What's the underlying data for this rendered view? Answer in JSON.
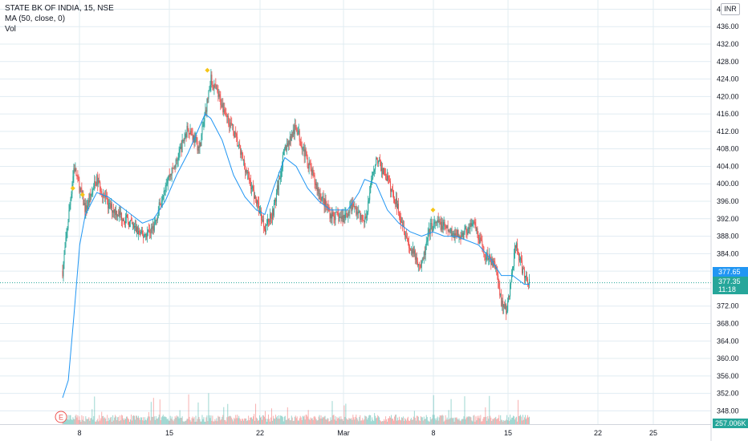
{
  "legend": {
    "symbol": "STATE BK OF INDIA, 15, NSE",
    "ma": "MA (50, close, 0)",
    "vol": "Vol"
  },
  "currency_badge": "INR",
  "price_labels": {
    "bid": "377.65",
    "last": "377.35",
    "countdown": "11:18",
    "volume": "257.006K"
  },
  "earnings_marker": "E",
  "colors": {
    "up": "#26a69a",
    "down": "#ef5350",
    "ma_line": "#2196f3",
    "grid": "#e1ecf2",
    "signal_marker": "#f5c518",
    "tag_blue": "#2196f3",
    "tag_green": "#26a69a"
  },
  "chart_data": {
    "type": "candlestick",
    "title": "STATE BK OF INDIA, 15, NSE",
    "x_tick_labels": [
      "8",
      "15",
      "22",
      "Mar",
      "8",
      "15",
      "22",
      "25"
    ],
    "y_tick_labels": [
      "348.00",
      "352.00",
      "356.00",
      "360.00",
      "364.00",
      "368.00",
      "372.00",
      "376.00",
      "380.00",
      "384.00",
      "388.00",
      "392.00",
      "396.00",
      "400.00",
      "404.00",
      "408.00",
      "412.00",
      "416.00",
      "420.00",
      "424.00",
      "428.00",
      "432.00",
      "436.00",
      "440.00"
    ],
    "ylim": [
      345.5,
      441
    ],
    "grid": true,
    "last_price": 377.35,
    "price_path": [
      [
        0,
        380
      ],
      [
        2,
        404
      ],
      [
        4,
        394
      ],
      [
        6,
        401
      ],
      [
        8,
        395
      ],
      [
        11,
        392
      ],
      [
        14,
        388
      ],
      [
        16,
        390
      ],
      [
        18,
        400
      ],
      [
        20,
        405
      ],
      [
        22,
        413
      ],
      [
        24,
        408
      ],
      [
        26,
        424
      ],
      [
        28,
        418
      ],
      [
        30,
        412
      ],
      [
        32,
        404
      ],
      [
        34,
        396
      ],
      [
        35.5,
        390
      ],
      [
        37,
        394
      ],
      [
        39,
        408
      ],
      [
        41,
        413
      ],
      [
        43,
        405
      ],
      [
        45,
        398
      ],
      [
        47,
        393
      ],
      [
        49,
        392
      ],
      [
        51,
        395
      ],
      [
        53,
        391
      ],
      [
        55,
        406
      ],
      [
        57,
        401
      ],
      [
        59,
        394
      ],
      [
        61,
        385
      ],
      [
        63,
        381
      ],
      [
        64.5,
        390
      ],
      [
        66,
        391
      ],
      [
        68,
        389
      ],
      [
        70,
        388
      ],
      [
        72,
        391
      ],
      [
        74,
        384
      ],
      [
        76,
        381
      ],
      [
        77,
        373
      ],
      [
        78,
        371
      ],
      [
        79.5,
        386
      ],
      [
        81,
        379
      ],
      [
        82,
        377.35
      ]
    ],
    "ma50_path": [
      [
        0,
        351
      ],
      [
        1,
        355
      ],
      [
        2,
        370
      ],
      [
        3,
        386
      ],
      [
        4,
        393
      ],
      [
        6,
        398
      ],
      [
        8,
        397
      ],
      [
        10,
        395
      ],
      [
        12,
        393
      ],
      [
        14,
        391
      ],
      [
        16,
        392
      ],
      [
        18,
        396
      ],
      [
        20,
        402
      ],
      [
        22,
        407
      ],
      [
        24,
        413
      ],
      [
        25,
        416
      ],
      [
        26,
        415
      ],
      [
        28,
        410
      ],
      [
        30,
        402
      ],
      [
        32,
        397
      ],
      [
        34,
        394
      ],
      [
        35.5,
        393
      ],
      [
        37,
        399
      ],
      [
        39,
        406
      ],
      [
        41,
        404
      ],
      [
        43,
        399
      ],
      [
        45,
        396
      ],
      [
        47,
        394
      ],
      [
        50,
        394
      ],
      [
        52,
        398
      ],
      [
        53,
        401
      ],
      [
        55,
        400
      ],
      [
        57,
        394
      ],
      [
        59,
        391
      ],
      [
        61,
        389
      ],
      [
        63,
        388
      ],
      [
        65,
        389
      ],
      [
        67,
        388
      ],
      [
        69,
        388
      ],
      [
        71,
        387
      ],
      [
        73,
        386
      ],
      [
        75,
        383
      ],
      [
        77,
        379
      ],
      [
        79,
        379
      ],
      [
        81,
        377
      ],
      [
        82,
        377
      ]
    ],
    "signal_markers": [
      {
        "x": 1.8,
        "y": 399
      },
      {
        "x": 3.5,
        "y": 397.5
      },
      {
        "x": 25.4,
        "y": 426
      },
      {
        "x": 65,
        "y": 394
      }
    ]
  }
}
